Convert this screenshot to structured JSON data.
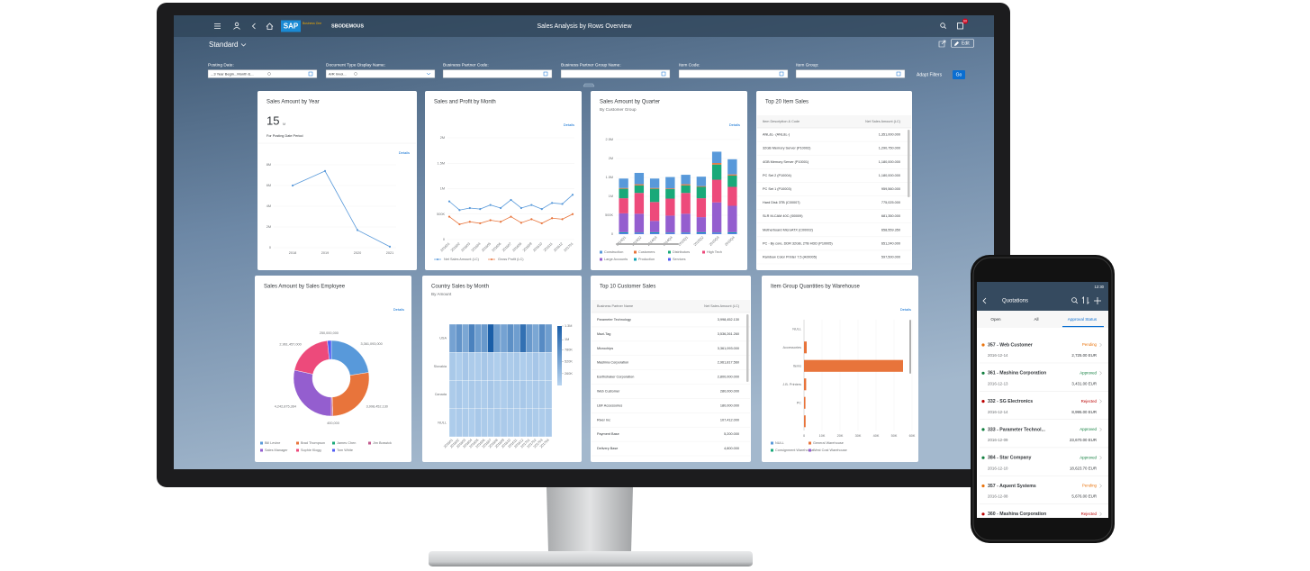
{
  "header": {
    "logo": "SAP",
    "logo_sub": "Business One",
    "company": "SBODEMOUS",
    "title": "Sales Analysis by Rows Overview",
    "notification_count": "60",
    "variant": "Standard",
    "edit": "Edit"
  },
  "filters": [
    {
      "label": "Posting Date:",
      "value": "...3 Year Begin...Month E..."
    },
    {
      "label": "Document Type Display Name:",
      "value": "A/R Invoi..."
    },
    {
      "label": "Business Partner Code:"
    },
    {
      "label": "Business Partner Group Name:"
    },
    {
      "label": "Item Code:"
    },
    {
      "label": "Item Group:"
    }
  ],
  "adapt_filters": "Adapt Filters",
  "go": "Go",
  "cards": {
    "sales_by_year": {
      "title": "Sales Amount by Year",
      "kpi": 15,
      "kpi_unit": "M",
      "kpi_note": "For Posting Date Period",
      "details": "Details",
      "chart": {
        "type": "line",
        "categories": [
          "2018",
          "2019",
          "2020",
          "2021"
        ],
        "values": [
          6,
          7.4,
          1.7,
          0.1
        ],
        "color": "#5899da",
        "ylim": [
          0,
          8
        ],
        "yticks": [
          0,
          {
            "value": 2,
            "label": "2M"
          },
          {
            "value": 4,
            "label": "4M"
          },
          {
            "value": 6,
            "label": "6M"
          },
          {
            "value": 8,
            "label": "8M"
          }
        ]
      }
    },
    "sales_profit_by_month": {
      "title": "Sales and Profit by Month",
      "details": "Details",
      "chart": {
        "type": "line",
        "categories": [
          "201601",
          "201602",
          "201603",
          "201604",
          "201605",
          "201606",
          "201607",
          "201608",
          "201609",
          "201610",
          "201611",
          "201612",
          "201701"
        ],
        "series": [
          {
            "name": "Net Sales Amount (LC)",
            "color": "#5899da",
            "values": [
              0.75,
              0.58,
              0.62,
              0.6,
              0.68,
              0.62,
              0.78,
              0.62,
              0.68,
              0.6,
              0.72,
              0.7,
              0.88
            ]
          },
          {
            "name": "Gross Profit (LC)",
            "color": "#e8743b",
            "values": [
              0.45,
              0.3,
              0.35,
              0.32,
              0.38,
              0.35,
              0.45,
              0.33,
              0.4,
              0.32,
              0.42,
              0.4,
              0.5
            ]
          }
        ],
        "ylim": [
          0,
          2
        ],
        "yticks": [
          0,
          {
            "value": 0.5,
            "label": "500K"
          },
          {
            "value": 1,
            "label": "1M"
          },
          {
            "value": 1.5,
            "label": "1.5M"
          },
          {
            "value": 2,
            "label": "2M"
          }
        ]
      }
    },
    "sales_by_quarter": {
      "title": "Sales Amount by Quarter",
      "subtitle": "By Customer Group",
      "details": "Details",
      "chart": {
        "type": "stacked_bar",
        "categories": [
          "2014Q1",
          "2014Q2",
          "2014Q3",
          "2014Q4",
          "2015Q1",
          "2015Q2",
          "2015Q3",
          "2015Q4"
        ],
        "series": [
          {
            "name": "Construction",
            "color": "#5899da",
            "values": [
              0.25,
              0.3,
              0.25,
              0.3,
              0.25,
              0.25,
              0.3,
              0.4
            ]
          },
          {
            "name": "Customers",
            "color": "#e8743b",
            "values": [
              0.02,
              0.03,
              0.02,
              0.02,
              0.03,
              0.02,
              0.04,
              0.03
            ]
          },
          {
            "name": "Distributors",
            "color": "#19a979",
            "values": [
              0.25,
              0.2,
              0.35,
              0.25,
              0.2,
              0.3,
              0.4,
              0.3
            ]
          },
          {
            "name": "High Tech",
            "color": "#ed4a7b",
            "values": [
              0.4,
              0.55,
              0.5,
              0.45,
              0.55,
              0.5,
              0.6,
              0.5
            ]
          },
          {
            "name": "Large Accounts",
            "color": "#945ecf",
            "values": [
              0.5,
              0.5,
              0.3,
              0.45,
              0.5,
              0.4,
              0.8,
              0.7
            ]
          },
          {
            "name": "Production",
            "color": "#13a4b4",
            "values": [
              0.03,
              0.02,
              0.03,
              0.02,
              0.02,
              0.03,
              0.02,
              0.03
            ]
          },
          {
            "name": "Services",
            "color": "#525df4",
            "values": [
              0.02,
              0.02,
              0.02,
              0.02,
              0.02,
              0.02,
              0.02,
              0.02
            ]
          }
        ],
        "ylim": [
          0,
          2.5
        ],
        "yticks": [
          0,
          {
            "value": 0.5,
            "label": "500K"
          },
          {
            "value": 1,
            "label": "1M"
          },
          {
            "value": 1.5,
            "label": "1.5M"
          },
          {
            "value": 2,
            "label": "2M"
          },
          {
            "value": 2.5,
            "label": "2.5M"
          }
        ]
      }
    },
    "top_items": {
      "title": "Top 20 Item Sales",
      "table": {
        "columns": [
          "Item Description & Code",
          "Net Sales Amount (LC)"
        ],
        "rows": [
          [
            "ANL&L- (ANL&L-)",
            "1,351,000.000"
          ],
          [
            "32GB Memory Server (P10002)",
            "1,290,750.000"
          ],
          [
            "4GB Memory Server (P10001)",
            "1,180,000.000"
          ],
          [
            "PC Set 2 (P10004)",
            "1,180,000.000"
          ],
          [
            "PC Set 1 (P10003)",
            "959,560.000"
          ],
          [
            "Hard Disk 3TB (C00007)",
            "775,025.000"
          ],
          [
            "SLR M-CAM 40C (I00009)",
            "681,350.000"
          ],
          [
            "Motherboard MicroATX (C00002)",
            "658,559.350"
          ],
          [
            "PC - By core, DDR 32GB, 2TB HDD (P10005)",
            "651,240.000"
          ],
          [
            "Rainbow Color Printer 7.5 (A00005)",
            "597,500.000"
          ]
        ]
      }
    },
    "sales_by_employee": {
      "title": "Sales Amount by Sales Employee",
      "details": "Details",
      "chart": {
        "type": "donut",
        "categories": [
          "Bill Levine",
          "Brad Thompson",
          "James Chen",
          "Jim Boswick",
          "Sales Manager",
          "Sophie Klogg",
          "Tom White"
        ],
        "colors": [
          "#5899da",
          "#e8743b",
          "#19a979",
          "#c15a8e",
          "#945ecf",
          "#ed4a7b",
          "#525df4"
        ],
        "values": [
          3361093000,
          3998452130,
          400000,
          100000000,
          4242875364,
          2961457000,
          250000000
        ],
        "value_labels": [
          "3,361,093,000",
          "3,998,452,130",
          "400,000",
          null,
          "4,242,875,364",
          "2,961,457,000",
          "250,000,000"
        ]
      }
    },
    "country_sales": {
      "title": "Country Sales by Month",
      "subtitle": "By Amount",
      "chart": {
        "type": "heatmap",
        "rows": [
          "USA",
          "Slovakia",
          "Canada",
          "NULL"
        ],
        "columns": [
          "201601",
          "201602",
          "201603",
          "201604",
          "201605",
          "201606",
          "201607",
          "201608",
          "201609",
          "201610",
          "201611",
          "201612",
          "201701",
          "201702",
          "201703",
          "201704"
        ],
        "values": [
          [
            0.55,
            0.7,
            0.5,
            0.9,
            0.6,
            0.65,
            1.3,
            0.6,
            0.55,
            0.75,
            0.6,
            1.1,
            0.65,
            0.5,
            0.8,
            0.6
          ],
          [
            0.12,
            0.08,
            0.15,
            0.1,
            0.09,
            0.14,
            0.11,
            0.07,
            0.13,
            0.1,
            0.12,
            0.08,
            0.1,
            0.15,
            0.09,
            0.11
          ],
          [
            0.1,
            0.13,
            0.08,
            0.12,
            0.11,
            0.09,
            0.14,
            0.1,
            0.08,
            0.12,
            0.1,
            0.13,
            0.09,
            0.11,
            0.12,
            0.1
          ],
          [
            0.09,
            0.11,
            0.1,
            0.08,
            0.13,
            0.1,
            0.09,
            0.12,
            0.11,
            0.09,
            0.1,
            0.08,
            0.12,
            0.1,
            0.09,
            0.11
          ]
        ],
        "color_range": [
          "#b8d4f0",
          "#1a5ea8"
        ],
        "zlim": [
          0,
          1.3
        ],
        "zticks": [
          {
            "value": 0.26,
            "label": "260K"
          },
          {
            "value": 0.52,
            "label": "520K"
          },
          {
            "value": 0.78,
            "label": "780K"
          },
          {
            "value": 1,
            "label": "1M"
          },
          {
            "value": 1.3,
            "label": "1.3M"
          }
        ]
      }
    },
    "top_customers": {
      "title": "Top 10 Customer Sales",
      "table": {
        "columns": [
          "Business Partner Name",
          "Net Sales Amount (LC)"
        ],
        "rows": [
          [
            "Parameter Technology",
            "3,998,452.130"
          ],
          [
            "Mazi-Tag",
            "3,536,261.260"
          ],
          [
            "Microchips",
            "3,361,093.000"
          ],
          [
            "Mashina Corporation",
            "2,961,817.560"
          ],
          [
            "Earthshaker Corporation",
            "2,800,000.000"
          ],
          [
            "Web Customer",
            "280,000.000"
          ],
          [
            "LBF Accessories",
            "180,000.000"
          ],
          [
            "River Inc",
            "107,412.000"
          ],
          [
            "Payment Base",
            "5,200.000"
          ],
          [
            "Delivery Base",
            "4,800.000"
          ]
        ]
      }
    },
    "item_group_qty": {
      "title": "Item Group Quantities by Warehouse",
      "details": "Details",
      "chart": {
        "type": "hbar",
        "categories": [
          "NULL",
          "Accessories",
          "Items",
          "J.B. Printers",
          "PC",
          null
        ],
        "values": [
          0,
          1500,
          55000,
          1200,
          800,
          900
        ],
        "color": "#e8743b",
        "xlim": [
          0,
          60000
        ],
        "xticks": [
          0,
          {
            "value": 10000,
            "label": "10K"
          },
          {
            "value": 20000,
            "label": "20K"
          },
          {
            "value": 30000,
            "label": "30K"
          },
          {
            "value": 40000,
            "label": "40K"
          },
          {
            "value": 50000,
            "label": "50K"
          },
          {
            "value": 60000,
            "label": "60K"
          }
        ],
        "legend": [
          {
            "name": "NULL",
            "color": "#5899da"
          },
          {
            "name": "General Warehouse",
            "color": "#e8743b"
          },
          {
            "name": "Consignment Warehouse",
            "color": "#19a979"
          },
          {
            "name": "West Cost Warehouse",
            "color": "#945ecf"
          }
        ]
      }
    }
  },
  "phone": {
    "time": "12:30",
    "title": "Quotations",
    "tabs": [
      "Open",
      "All",
      "Approval Status"
    ],
    "items": [
      {
        "name": "357 - Web Customer",
        "date": "2016-12-14",
        "status": "Pending",
        "status_color": "#e9730c",
        "amount": "2,725.00 EUR"
      },
      {
        "name": "361 - Mashina Corporation",
        "date": "2016-12-13",
        "status": "Approved",
        "status_color": "#107e3e",
        "amount": "3,431.00 EUR"
      },
      {
        "name": "332 - SG Electronics",
        "date": "2016-12-14",
        "status": "Rejected",
        "status_color": "#bb0000",
        "amount": "8,995.00 EUR"
      },
      {
        "name": "333 - Parameter Technol...",
        "date": "2016-12-09",
        "status": "Approved",
        "status_color": "#107e3e",
        "amount": "23,670.00 EUR"
      },
      {
        "name": "384 - Star Company",
        "date": "2016-12-10",
        "status": "Approved",
        "status_color": "#107e3e",
        "amount": "18,623.70 EUR"
      },
      {
        "name": "357 - Aquent Systems",
        "date": "2016-12-08",
        "status": "Pending",
        "status_color": "#e9730c",
        "amount": "5,676.00 EUR"
      },
      {
        "name": "360 - Mashina Corporation",
        "status": "Rejected",
        "status_color": "#bb0000"
      }
    ]
  }
}
